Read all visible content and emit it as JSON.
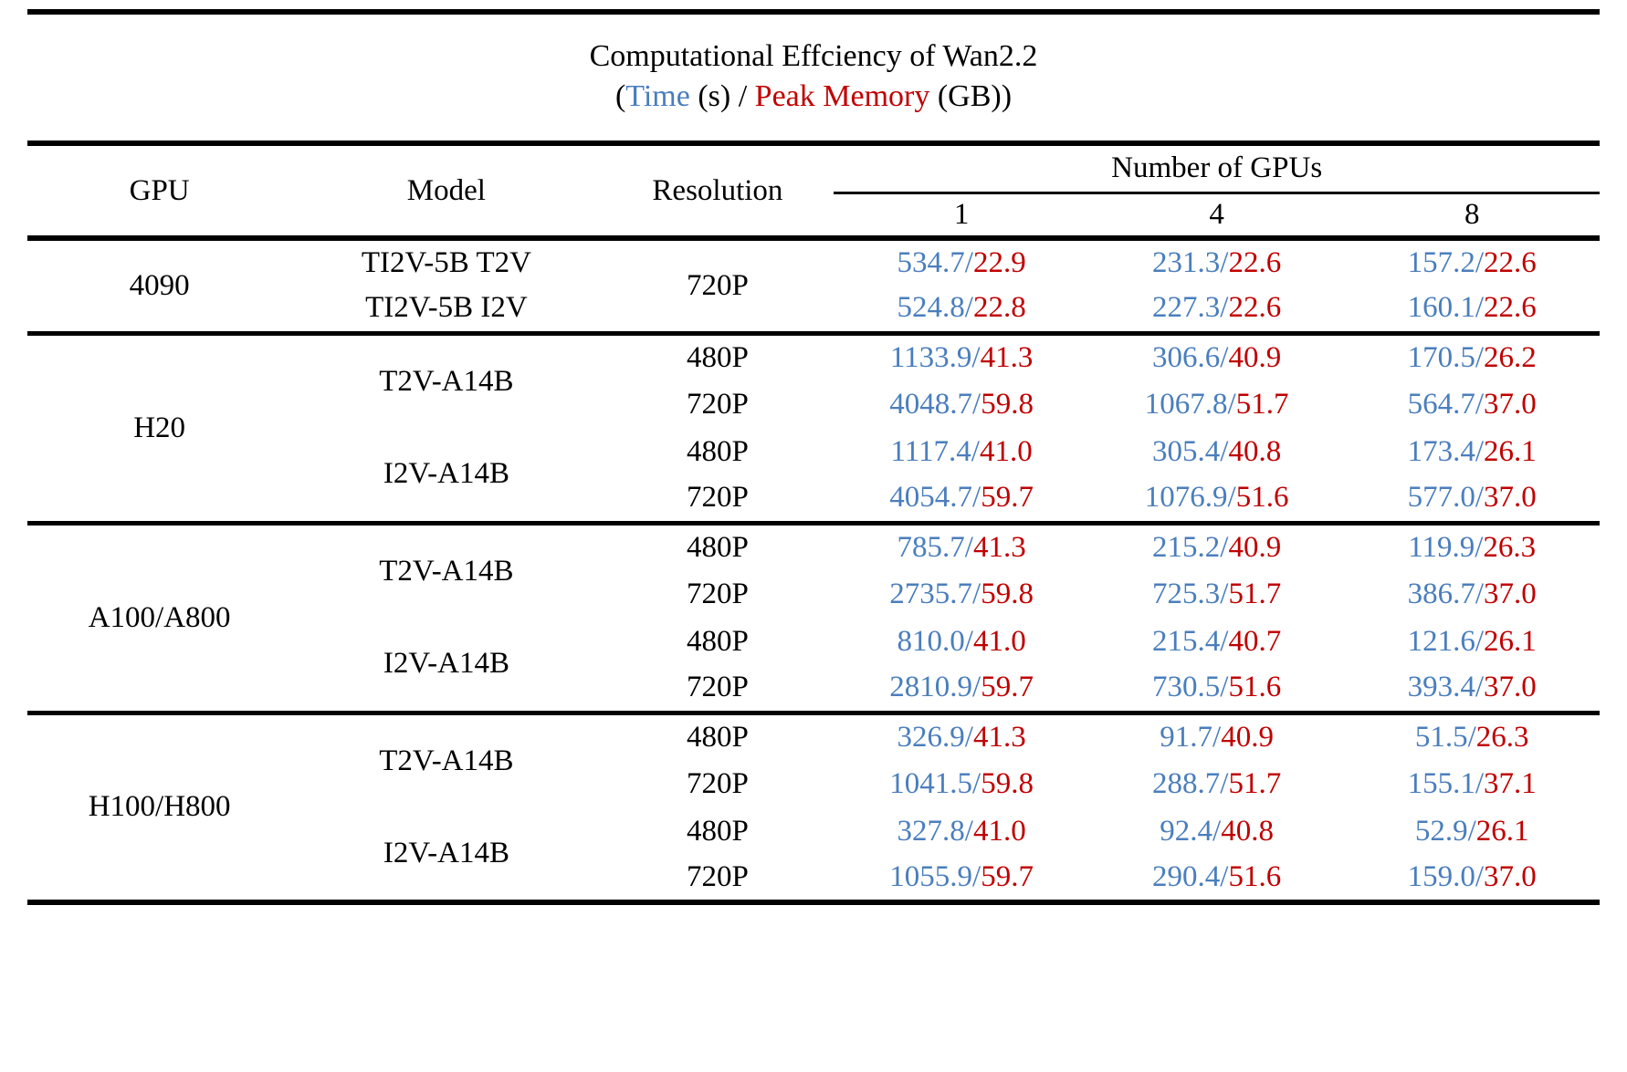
{
  "title": {
    "line1": "Computational Effciency of Wan2.2",
    "line2": {
      "open": "(",
      "time_label": "Time",
      "mid": " (s) / ",
      "memory_label": "Peak Memory",
      "close": " (GB))"
    }
  },
  "colors": {
    "time": "#4a7ebd",
    "memory": "#c00000"
  },
  "table": {
    "separator": "/",
    "headers": {
      "gpu": "GPU",
      "model": "Model",
      "resolution": "Resolution",
      "gpus_group": "Number of GPUs",
      "counts": [
        "1",
        "4",
        "8"
      ]
    },
    "groups": [
      {
        "gpu": "4090",
        "rows": [
          {
            "model": "TI2V-5B T2V",
            "resolution": "720P",
            "cells": [
              {
                "t": "534.7",
                "m": "22.9"
              },
              {
                "t": "231.3",
                "m": "22.6"
              },
              {
                "t": "157.2",
                "m": "22.6"
              }
            ]
          },
          {
            "model": "TI2V-5B I2V",
            "cells": [
              {
                "t": "524.8",
                "m": "22.8"
              },
              {
                "t": "227.3",
                "m": "22.6"
              },
              {
                "t": "160.1",
                "m": "22.6"
              }
            ]
          }
        ]
      },
      {
        "gpu": "H20",
        "rows": [
          {
            "model": "T2V-A14B",
            "resolution": "480P",
            "cells": [
              {
                "t": "1133.9",
                "m": "41.3"
              },
              {
                "t": "306.6",
                "m": "40.9"
              },
              {
                "t": "170.5",
                "m": "26.2"
              }
            ]
          },
          {
            "resolution": "720P",
            "cells": [
              {
                "t": "4048.7",
                "m": "59.8"
              },
              {
                "t": "1067.8",
                "m": "51.7"
              },
              {
                "t": "564.7",
                "m": "37.0"
              }
            ]
          },
          {
            "model": "I2V-A14B",
            "resolution": "480P",
            "cells": [
              {
                "t": "1117.4",
                "m": "41.0"
              },
              {
                "t": "305.4",
                "m": "40.8"
              },
              {
                "t": "173.4",
                "m": "26.1"
              }
            ]
          },
          {
            "resolution": "720P",
            "cells": [
              {
                "t": "4054.7",
                "m": "59.7"
              },
              {
                "t": "1076.9",
                "m": "51.6"
              },
              {
                "t": "577.0",
                "m": "37.0"
              }
            ]
          }
        ]
      },
      {
        "gpu": "A100/A800",
        "rows": [
          {
            "model": "T2V-A14B",
            "resolution": "480P",
            "cells": [
              {
                "t": "785.7",
                "m": "41.3"
              },
              {
                "t": "215.2",
                "m": "40.9"
              },
              {
                "t": "119.9",
                "m": "26.3"
              }
            ]
          },
          {
            "resolution": "720P",
            "cells": [
              {
                "t": "2735.7",
                "m": "59.8"
              },
              {
                "t": "725.3",
                "m": "51.7"
              },
              {
                "t": "386.7",
                "m": "37.0"
              }
            ]
          },
          {
            "model": "I2V-A14B",
            "resolution": "480P",
            "cells": [
              {
                "t": "810.0",
                "m": "41.0"
              },
              {
                "t": "215.4",
                "m": "40.7"
              },
              {
                "t": "121.6",
                "m": "26.1"
              }
            ]
          },
          {
            "resolution": "720P",
            "cells": [
              {
                "t": "2810.9",
                "m": "59.7"
              },
              {
                "t": "730.5",
                "m": "51.6"
              },
              {
                "t": "393.4",
                "m": "37.0"
              }
            ]
          }
        ]
      },
      {
        "gpu": "H100/H800",
        "rows": [
          {
            "model": "T2V-A14B",
            "resolution": "480P",
            "cells": [
              {
                "t": "326.9",
                "m": "41.3"
              },
              {
                "t": "91.7",
                "m": "40.9"
              },
              {
                "t": "51.5",
                "m": "26.3"
              }
            ]
          },
          {
            "resolution": "720P",
            "cells": [
              {
                "t": "1041.5",
                "m": "59.8"
              },
              {
                "t": "288.7",
                "m": "51.7"
              },
              {
                "t": "155.1",
                "m": "37.1"
              }
            ]
          },
          {
            "model": "I2V-A14B",
            "resolution": "480P",
            "cells": [
              {
                "t": "327.8",
                "m": "41.0"
              },
              {
                "t": "92.4",
                "m": "40.8"
              },
              {
                "t": "52.9",
                "m": "26.1"
              }
            ]
          },
          {
            "resolution": "720P",
            "cells": [
              {
                "t": "1055.9",
                "m": "59.7"
              },
              {
                "t": "290.4",
                "m": "51.6"
              },
              {
                "t": "159.0",
                "m": "37.0"
              }
            ]
          }
        ]
      }
    ]
  },
  "chart_data": {
    "type": "table",
    "title": "Computational Effciency of Wan2.2 (Time (s) / Peak Memory (GB))",
    "column_group": "Number of GPUs",
    "columns": [
      "GPU",
      "Model",
      "Resolution",
      "1",
      "4",
      "8"
    ],
    "cell_format": "Time(s)/PeakMemory(GB)",
    "rows": [
      [
        "4090",
        "TI2V-5B T2V",
        "720P",
        "534.7/22.9",
        "231.3/22.6",
        "157.2/22.6"
      ],
      [
        "4090",
        "TI2V-5B I2V",
        "720P",
        "524.8/22.8",
        "227.3/22.6",
        "160.1/22.6"
      ],
      [
        "H20",
        "T2V-A14B",
        "480P",
        "1133.9/41.3",
        "306.6/40.9",
        "170.5/26.2"
      ],
      [
        "H20",
        "T2V-A14B",
        "720P",
        "4048.7/59.8",
        "1067.8/51.7",
        "564.7/37.0"
      ],
      [
        "H20",
        "I2V-A14B",
        "480P",
        "1117.4/41.0",
        "305.4/40.8",
        "173.4/26.1"
      ],
      [
        "H20",
        "I2V-A14B",
        "720P",
        "4054.7/59.7",
        "1076.9/51.6",
        "577.0/37.0"
      ],
      [
        "A100/A800",
        "T2V-A14B",
        "480P",
        "785.7/41.3",
        "215.2/40.9",
        "119.9/26.3"
      ],
      [
        "A100/A800",
        "T2V-A14B",
        "720P",
        "2735.7/59.8",
        "725.3/51.7",
        "386.7/37.0"
      ],
      [
        "A100/A800",
        "I2V-A14B",
        "480P",
        "810.0/41.0",
        "215.4/40.7",
        "121.6/26.1"
      ],
      [
        "A100/A800",
        "I2V-A14B",
        "720P",
        "2810.9/59.7",
        "730.5/51.6",
        "393.4/37.0"
      ],
      [
        "H100/H800",
        "T2V-A14B",
        "480P",
        "326.9/41.3",
        "91.7/40.9",
        "51.5/26.3"
      ],
      [
        "H100/H800",
        "T2V-A14B",
        "720P",
        "1041.5/59.8",
        "288.7/51.7",
        "155.1/37.1"
      ],
      [
        "H100/H800",
        "I2V-A14B",
        "480P",
        "327.8/41.0",
        "92.4/40.8",
        "52.9/26.1"
      ],
      [
        "H100/H800",
        "I2V-A14B",
        "720P",
        "1055.9/59.7",
        "290.4/51.6",
        "159.0/37.0"
      ]
    ]
  }
}
